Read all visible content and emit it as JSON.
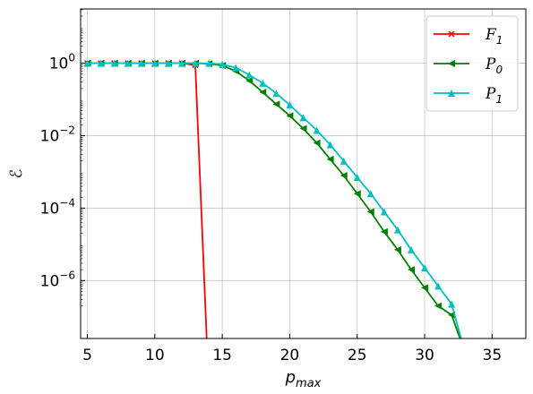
{
  "chart_data": {
    "type": "line",
    "xlabel": "p_max",
    "ylabel": "ℰ",
    "xlim": [
      4.5,
      37.5
    ],
    "ylim_log10": [
      -7.6,
      1.5
    ],
    "yscale": "log",
    "grid": true,
    "legend_position": "top-right",
    "xticks": [
      5,
      10,
      15,
      20,
      25,
      30,
      35
    ],
    "yticks_exponent": [
      0,
      -2,
      -4,
      -6
    ],
    "series": [
      {
        "name": "F1",
        "color": "#ff0000",
        "marker": "x",
        "x": [
          5,
          6,
          7,
          8,
          9,
          10,
          11,
          12,
          13,
          14
        ],
        "log10_y": [
          0,
          0,
          0,
          0,
          0,
          0,
          0,
          0,
          -0.05,
          -9
        ]
      },
      {
        "name": "P0",
        "color": "#008000",
        "marker": "triangle-left",
        "x": [
          5,
          6,
          7,
          8,
          9,
          10,
          11,
          12,
          13,
          14,
          15,
          16,
          17,
          18,
          19,
          20,
          21,
          22,
          23,
          24,
          25,
          26,
          27,
          28,
          29,
          30,
          31,
          32,
          33
        ],
        "log10_y": [
          0,
          0,
          0,
          0,
          0,
          0,
          0,
          0,
          0,
          -0.01,
          -0.06,
          -0.22,
          -0.48,
          -0.8,
          -1.13,
          -1.45,
          -1.8,
          -2.2,
          -2.65,
          -3.1,
          -3.6,
          -4.1,
          -4.65,
          -5.15,
          -5.7,
          -6.2,
          -6.7,
          -6.95,
          -8
        ]
      },
      {
        "name": "P1",
        "color": "#00bfbf",
        "marker": "triangle-up",
        "x": [
          5,
          6,
          7,
          8,
          9,
          10,
          11,
          12,
          13,
          14,
          15,
          16,
          17,
          18,
          19,
          20,
          21,
          22,
          23,
          24,
          25,
          26,
          27,
          28,
          29,
          30,
          31,
          32,
          33
        ],
        "log10_y": [
          0,
          0,
          0,
          0,
          0,
          0,
          0,
          0,
          0,
          0,
          -0.03,
          -0.12,
          -0.32,
          -0.55,
          -0.83,
          -1.15,
          -1.5,
          -1.85,
          -2.25,
          -2.7,
          -3.15,
          -3.6,
          -4.1,
          -4.6,
          -5.15,
          -5.65,
          -6.15,
          -6.65,
          -8
        ]
      }
    ]
  }
}
